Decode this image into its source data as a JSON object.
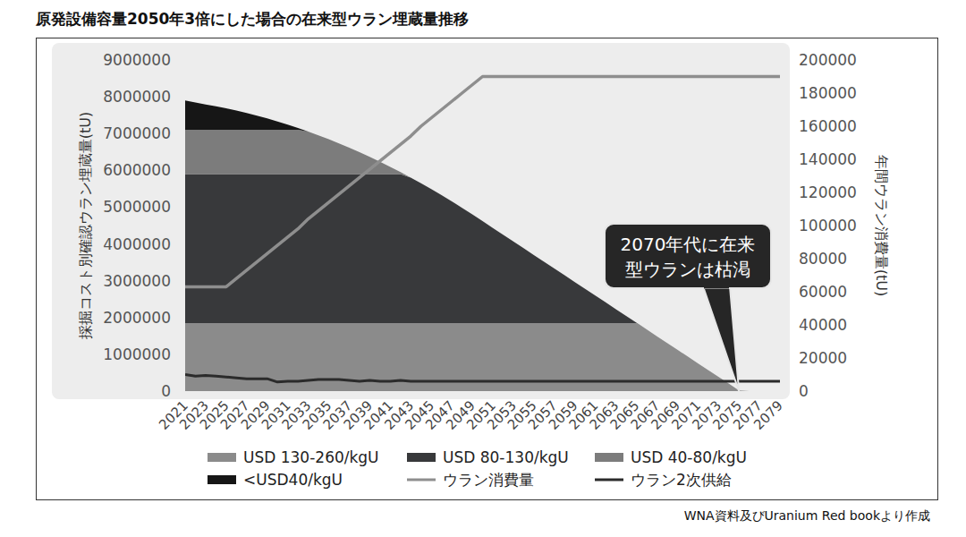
{
  "chart_data": {
    "type": "area",
    "title": "原発設備容量2050年3倍にした場合の在来型ウラン埋蔵量推移",
    "source": "WNA資料及びUranium Red bookより作成",
    "y_label": "採掘コスト別確認ウラン埋蔵量(tU)",
    "y2_label": "年間ウラン消費量(tU)",
    "categories": [
      "2021",
      null,
      "2023",
      null,
      "2025",
      null,
      "2027",
      null,
      "2029",
      null,
      "2031",
      null,
      "2033",
      null,
      "2035",
      null,
      "2037",
      null,
      "2039",
      null,
      "2041",
      null,
      "2043",
      null,
      "2045",
      null,
      "2047",
      null,
      "2049",
      null,
      "2051",
      null,
      "2053",
      null,
      "2055",
      null,
      "2057",
      null,
      "2059",
      null,
      "2061",
      null,
      "2063",
      null,
      "2065",
      null,
      "2067",
      null,
      "2069",
      null,
      "2071",
      null,
      "2073",
      null,
      "2075",
      null,
      "2077",
      null,
      "2079"
    ],
    "ylim": [
      0,
      9000000
    ],
    "yticks": [
      0,
      1000000,
      2000000,
      3000000,
      4000000,
      5000000,
      6000000,
      7000000,
      8000000,
      9000000
    ],
    "y2lim": [
      0,
      200000
    ],
    "y2ticks": [
      0,
      20000,
      40000,
      60000,
      80000,
      100000,
      120000,
      140000,
      160000,
      180000,
      200000
    ],
    "stacked": true,
    "grid": false,
    "legend": "bottom",
    "series": [
      {
        "name": "USD 130-260/kgU",
        "type": "area",
        "color": "#8b8b8b",
        "values": [
          1850000,
          1850000,
          1850000,
          1850000,
          1850000,
          1850000,
          1850000,
          1850000,
          1850000,
          1850000,
          1850000,
          1850000,
          1850000,
          1850000,
          1850000,
          1850000,
          1850000,
          1850000,
          1850000,
          1850000,
          1850000,
          1850000,
          1850000,
          1850000,
          1850000,
          1850000,
          1850000,
          1850000,
          1850000,
          1850000,
          1850000,
          1850000,
          1850000,
          1850000,
          1850000,
          1850000,
          1850000,
          1850000,
          1850000,
          1850000,
          1850000,
          1850000,
          1850000,
          1850000,
          1850000,
          1676000,
          1492000,
          1308000,
          1124000,
          940000,
          756000,
          572000,
          388000,
          204000,
          20000,
          0,
          0,
          0,
          0
        ]
      },
      {
        "name": "USD 80-130/kgU",
        "type": "area",
        "color": "#38393b",
        "values": [
          4050000,
          4050000,
          4050000,
          4050000,
          4050000,
          4050000,
          4050000,
          4050000,
          4050000,
          4050000,
          4050000,
          4050000,
          4050000,
          4050000,
          4050000,
          4050000,
          4050000,
          4050000,
          4050000,
          4050000,
          4050000,
          4050000,
          3953000,
          3799000,
          3640000,
          3476000,
          3307000,
          3133000,
          2954000,
          2770000,
          2586000,
          2402000,
          2218000,
          2034000,
          1850000,
          1666000,
          1482000,
          1298000,
          1114000,
          930000,
          746000,
          562000,
          378000,
          194000,
          10000,
          0,
          0,
          0,
          0,
          0,
          0,
          0,
          0,
          0,
          0,
          0,
          0,
          0,
          0
        ]
      },
      {
        "name": "USD 40-80/kgU",
        "type": "area",
        "color": "#7c7c7c",
        "values": [
          1200000,
          1200000,
          1200000,
          1200000,
          1200000,
          1200000,
          1200000,
          1200000,
          1200000,
          1200000,
          1200000,
          1200000,
          1153500,
          1051500,
          944500,
          832500,
          715000,
          592000,
          464500,
          331500,
          193500,
          51000,
          0,
          0,
          0,
          0,
          0,
          0,
          0,
          0,
          0,
          0,
          0,
          0,
          0,
          0,
          0,
          0,
          0,
          0,
          0,
          0,
          0,
          0,
          0,
          0,
          0,
          0,
          0,
          0,
          0,
          0,
          0,
          0,
          0,
          0,
          0,
          0,
          0
        ]
      },
      {
        "name": "<USD40/kgU",
        "type": "area",
        "color": "#161616",
        "values": [
          800000,
          746000,
          692500,
          638500,
          584000,
          524000,
          458500,
          388000,
          312500,
          230000,
          143000,
          51000,
          0,
          0,
          0,
          0,
          0,
          0,
          0,
          0,
          0,
          0,
          0,
          0,
          0,
          0,
          0,
          0,
          0,
          0,
          0,
          0,
          0,
          0,
          0,
          0,
          0,
          0,
          0,
          0,
          0,
          0,
          0,
          0,
          0,
          0,
          0,
          0,
          0,
          0,
          0,
          0,
          0,
          0,
          0,
          0,
          0,
          0,
          0
        ]
      },
      {
        "name": "ウラン消費量",
        "type": "line",
        "axis": "y2",
        "color": "#8e8e8e",
        "values": [
          63000,
          63000,
          63000,
          63000,
          63000,
          68000,
          73000,
          78000,
          83000,
          88000,
          93000,
          98000,
          104000,
          109000,
          114000,
          119000,
          124000,
          129000,
          134000,
          139000,
          144000,
          149000,
          154000,
          160000,
          165000,
          170000,
          175000,
          180000,
          185000,
          190000,
          190000,
          190000,
          190000,
          190000,
          190000,
          190000,
          190000,
          190000,
          190000,
          190000,
          190000,
          190000,
          190000,
          190000,
          190000,
          190000,
          190000,
          190000,
          190000,
          190000,
          190000,
          190000,
          190000,
          190000,
          190000,
          190000,
          190000,
          190000,
          190000
        ]
      },
      {
        "name": "ウラン2次供給",
        "type": "line",
        "axis": "y2",
        "color": "#2b2b2b",
        "values": [
          10000,
          9000,
          9500,
          9000,
          8500,
          8000,
          7500,
          7500,
          7500,
          5500,
          6000,
          6000,
          6500,
          7000,
          7000,
          7000,
          6500,
          6000,
          6500,
          6000,
          6000,
          6500,
          6000,
          6000,
          6000,
          6000,
          6000,
          6000,
          6000,
          6000,
          6000,
          6000,
          6000,
          6000,
          6000,
          6000,
          6000,
          6000,
          6000,
          6000,
          6000,
          6000,
          6000,
          6000,
          6000,
          6000,
          6000,
          6000,
          6000,
          6000,
          6000,
          6000,
          6000,
          6000,
          6000,
          6000,
          6000,
          6000,
          6000
        ]
      }
    ],
    "annotations": [
      {
        "text": [
          "2070年代に在来",
          "型ウランは枯渇"
        ],
        "x": "2075",
        "y": 0
      }
    ]
  }
}
